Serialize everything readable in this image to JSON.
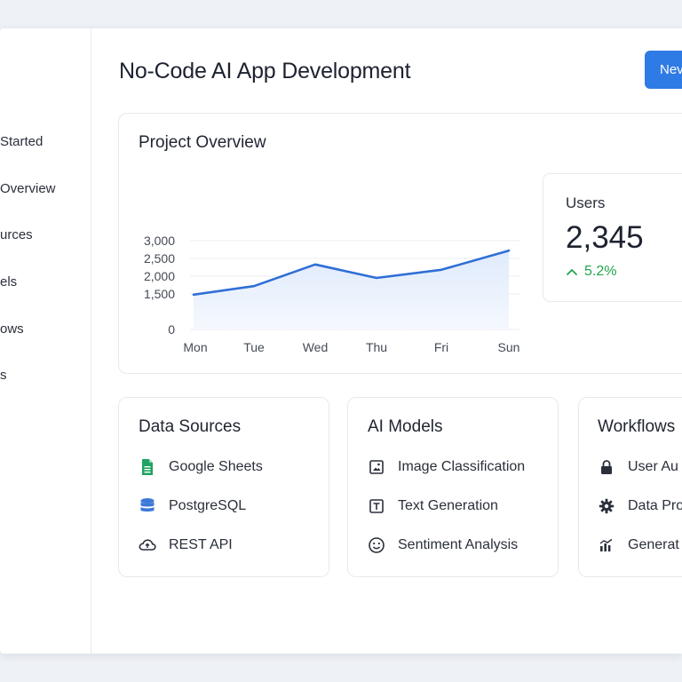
{
  "sidebar": {
    "items": [
      {
        "label": "Started"
      },
      {
        "label": "Overview"
      },
      {
        "label": "urces"
      },
      {
        "label": "els"
      },
      {
        "label": "ows"
      },
      {
        "label": "s"
      }
    ]
  },
  "header": {
    "title": "No-Code AI App Development",
    "new_button_label": "Nev"
  },
  "overview": {
    "title": "Project Overview",
    "users": {
      "label": "Users",
      "value": "2,345",
      "delta": "5.2%",
      "delta_color": "#22a44d"
    }
  },
  "chart_data": {
    "type": "line",
    "categories": [
      "Mon",
      "Tue",
      "Wed",
      "Thu",
      "Fri",
      "Sun"
    ],
    "series": [
      {
        "values": [
          1480,
          1720,
          2330,
          1950,
          2180,
          2720
        ],
        "color": "#2f6fd6"
      }
    ],
    "y_ticks": [
      "0",
      "1,500",
      "2,000",
      "2,500",
      "3,000"
    ],
    "grid": true
  },
  "data_sources": {
    "title": "Data Sources",
    "items": [
      {
        "label": "Google Sheets",
        "icon": "google-sheets-icon",
        "color": "#1fa463"
      },
      {
        "label": "PostgreSQL",
        "icon": "database-icon",
        "color": "#3b78d8"
      },
      {
        "label": "REST API",
        "icon": "cloud-icon"
      }
    ]
  },
  "ai_models": {
    "title": "AI Models",
    "items": [
      {
        "label": "Image Classification",
        "icon": "image-icon"
      },
      {
        "label": "Text Generation",
        "icon": "text-icon"
      },
      {
        "label": "Sentiment Analysis",
        "icon": "smiley-icon"
      }
    ]
  },
  "workflows": {
    "title": "Workflows",
    "items": [
      {
        "label": "User Au",
        "icon": "lock-icon"
      },
      {
        "label": "Data Pro",
        "icon": "gear-icon"
      },
      {
        "label": "Generat",
        "icon": "bar-chart-icon"
      }
    ]
  }
}
